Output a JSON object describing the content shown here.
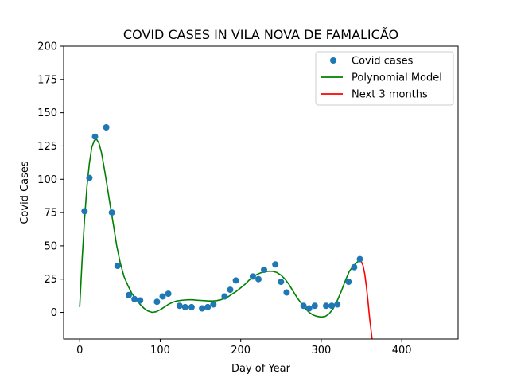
{
  "chart_data": {
    "type": "scatter",
    "title": "COVID CASES IN VILA NOVA DE FAMALICÃO",
    "xlabel": "Day of Year",
    "ylabel": "Covid Cases",
    "xlim": [
      -20,
      470
    ],
    "ylim": [
      -20,
      200
    ],
    "xticks": [
      0,
      100,
      200,
      300,
      400
    ],
    "yticks": [
      0,
      25,
      50,
      75,
      100,
      125,
      150,
      175,
      200
    ],
    "grid": false,
    "legend_position": "top-right",
    "series": [
      {
        "name": "Covid cases",
        "kind": "scatter",
        "color": "#1f77b4",
        "points": [
          [
            6,
            76
          ],
          [
            12,
            101
          ],
          [
            19,
            132
          ],
          [
            33,
            139
          ],
          [
            40,
            75
          ],
          [
            47,
            35
          ],
          [
            61,
            13
          ],
          [
            68,
            10
          ],
          [
            75,
            9
          ],
          [
            96,
            8
          ],
          [
            103,
            12
          ],
          [
            110,
            14
          ],
          [
            124,
            5
          ],
          [
            131,
            4
          ],
          [
            139,
            4
          ],
          [
            152,
            3
          ],
          [
            159,
            4
          ],
          [
            166,
            6
          ],
          [
            180,
            12
          ],
          [
            187,
            17
          ],
          [
            194,
            24
          ],
          [
            215,
            27
          ],
          [
            222,
            25
          ],
          [
            229,
            32
          ],
          [
            243,
            36
          ],
          [
            250,
            23
          ],
          [
            257,
            15
          ],
          [
            278,
            5
          ],
          [
            285,
            3
          ],
          [
            292,
            5
          ],
          [
            306,
            5
          ],
          [
            313,
            5
          ],
          [
            320,
            6
          ],
          [
            334,
            23
          ],
          [
            341,
            34
          ],
          [
            348,
            40
          ]
        ]
      },
      {
        "name": "Polynomial Model",
        "kind": "line",
        "color": "#008000",
        "points": [
          [
            0,
            4
          ],
          [
            3,
            40
          ],
          [
            6,
            70
          ],
          [
            9,
            95
          ],
          [
            12,
            112
          ],
          [
            15,
            124
          ],
          [
            18,
            129
          ],
          [
            21,
            130
          ],
          [
            24,
            127
          ],
          [
            27,
            120
          ],
          [
            30,
            110
          ],
          [
            34,
            95
          ],
          [
            38,
            80
          ],
          [
            42,
            65
          ],
          [
            46,
            50
          ],
          [
            50,
            38
          ],
          [
            55,
            27
          ],
          [
            60,
            20
          ],
          [
            65,
            14
          ],
          [
            70,
            10
          ],
          [
            75,
            6
          ],
          [
            80,
            3
          ],
          [
            85,
            1
          ],
          [
            90,
            0
          ],
          [
            95,
            0.5
          ],
          [
            100,
            2
          ],
          [
            105,
            4
          ],
          [
            110,
            6
          ],
          [
            115,
            7.5
          ],
          [
            120,
            8.5
          ],
          [
            125,
            9
          ],
          [
            130,
            9.3
          ],
          [
            135,
            9.5
          ],
          [
            140,
            9.5
          ],
          [
            145,
            9.2
          ],
          [
            150,
            9
          ],
          [
            155,
            8.8
          ],
          [
            160,
            8.6
          ],
          [
            165,
            8.6
          ],
          [
            170,
            8.8
          ],
          [
            175,
            9.5
          ],
          [
            180,
            10.5
          ],
          [
            185,
            12
          ],
          [
            190,
            14
          ],
          [
            195,
            16
          ],
          [
            200,
            18.5
          ],
          [
            205,
            21
          ],
          [
            210,
            24
          ],
          [
            215,
            26.5
          ],
          [
            220,
            28.5
          ],
          [
            225,
            29.8
          ],
          [
            230,
            30.5
          ],
          [
            235,
            31
          ],
          [
            240,
            30.8
          ],
          [
            245,
            30
          ],
          [
            250,
            28
          ],
          [
            255,
            25
          ],
          [
            260,
            21
          ],
          [
            265,
            16
          ],
          [
            270,
            11
          ],
          [
            275,
            7
          ],
          [
            280,
            3
          ],
          [
            285,
            0
          ],
          [
            290,
            -2
          ],
          [
            295,
            -3
          ],
          [
            300,
            -3.5
          ],
          [
            305,
            -3
          ],
          [
            310,
            -1
          ],
          [
            315,
            3
          ],
          [
            320,
            9
          ],
          [
            325,
            16
          ],
          [
            330,
            24
          ],
          [
            335,
            31
          ],
          [
            340,
            35
          ],
          [
            345,
            38
          ],
          [
            348,
            38.5
          ],
          [
            350,
            38
          ]
        ]
      },
      {
        "name": "Next 3 months",
        "kind": "line",
        "color": "#ff0000",
        "points": [
          [
            350,
            38
          ],
          [
            352,
            35
          ],
          [
            354,
            29
          ],
          [
            356,
            20
          ],
          [
            358,
            9
          ],
          [
            360,
            -4
          ],
          [
            362,
            -14
          ],
          [
            363.5,
            -22
          ]
        ]
      }
    ]
  }
}
